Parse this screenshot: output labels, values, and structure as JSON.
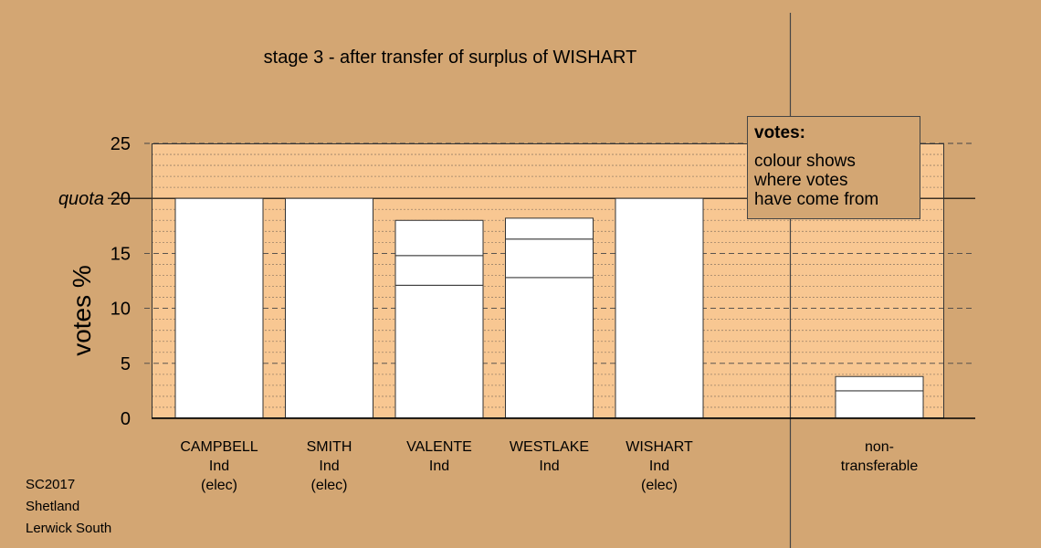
{
  "title": "stage 3 - after transfer of surplus of WISHART",
  "legend": {
    "title": "votes:",
    "text": "colour shows\nwhere votes\nhave come from"
  },
  "footer": {
    "line1": "SC2017",
    "line2": "Shetland",
    "line3": "Lerwick South"
  },
  "colors": {
    "background": "#d3a673",
    "plot_area": "#f8c792",
    "bar": "#ffffff"
  },
  "chart_data": {
    "type": "bar",
    "stacked": true,
    "ylabel": "votes %",
    "ylim": [
      0,
      25
    ],
    "yticks": [
      0,
      5,
      10,
      15,
      20,
      25
    ],
    "quota": {
      "label": "quota",
      "value": 20
    },
    "grid": "minor dotted every 1%, dashed every 5%",
    "categories": [
      {
        "lines": [
          "CAMPBELL",
          "Ind",
          "(elec)"
        ],
        "segments": [
          20
        ]
      },
      {
        "lines": [
          "SMITH",
          "Ind",
          "(elec)"
        ],
        "segments": [
          20
        ]
      },
      {
        "lines": [
          "VALENTE",
          "Ind"
        ],
        "segments": [
          12.1,
          2.7,
          3.2
        ]
      },
      {
        "lines": [
          "WESTLAKE",
          "Ind"
        ],
        "segments": [
          12.8,
          3.5,
          1.9
        ]
      },
      {
        "lines": [
          "WISHART",
          "Ind",
          "(elec)"
        ],
        "segments": [
          20
        ]
      },
      {
        "lines": [
          "non-",
          "transferable"
        ],
        "segments": [
          2.5,
          1.3
        ]
      }
    ]
  }
}
